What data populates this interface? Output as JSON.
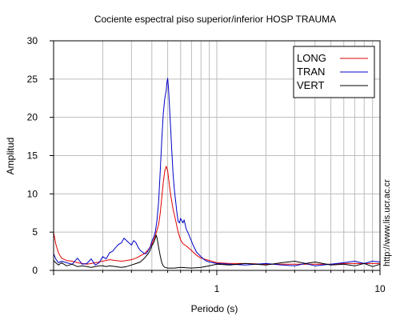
{
  "chart_data": {
    "type": "line",
    "title": "Cociente espectral piso superior/inferior  HOSP TRAUMA",
    "xlabel": "Periodo (s)",
    "ylabel": "Amplitud",
    "xscale": "log",
    "xlim": [
      0.1,
      10
    ],
    "ylim": [
      0,
      30
    ],
    "grid": true,
    "legend_position": "top-right",
    "x_tick_labels": [
      {
        "value": 1,
        "label": "1"
      },
      {
        "value": 10,
        "label": "10"
      }
    ],
    "y_tick_labels": [
      {
        "value": 0,
        "label": "0"
      },
      {
        "value": 5,
        "label": "5"
      },
      {
        "value": 10,
        "label": "10"
      },
      {
        "value": 15,
        "label": "15"
      },
      {
        "value": 20,
        "label": "20"
      },
      {
        "value": 25,
        "label": "25"
      },
      {
        "value": 30,
        "label": "30"
      }
    ],
    "series": [
      {
        "name": "LONG",
        "color": "#e00000",
        "points": [
          [
            0.1,
            5.0
          ],
          [
            0.103,
            3.5
          ],
          [
            0.107,
            2.3
          ],
          [
            0.112,
            1.6
          ],
          [
            0.12,
            1.3
          ],
          [
            0.13,
            1.2
          ],
          [
            0.14,
            1.0
          ],
          [
            0.15,
            0.9
          ],
          [
            0.16,
            0.8
          ],
          [
            0.17,
            0.9
          ],
          [
            0.18,
            1.0
          ],
          [
            0.19,
            1.1
          ],
          [
            0.2,
            1.2
          ],
          [
            0.21,
            1.3
          ],
          [
            0.22,
            1.4
          ],
          [
            0.24,
            1.3
          ],
          [
            0.26,
            1.2
          ],
          [
            0.28,
            1.3
          ],
          [
            0.3,
            1.4
          ],
          [
            0.32,
            1.6
          ],
          [
            0.34,
            1.9
          ],
          [
            0.36,
            2.2
          ],
          [
            0.38,
            2.7
          ],
          [
            0.4,
            3.4
          ],
          [
            0.42,
            4.5
          ],
          [
            0.44,
            6.0
          ],
          [
            0.45,
            7.5
          ],
          [
            0.46,
            9.5
          ],
          [
            0.47,
            11.5
          ],
          [
            0.48,
            13.0
          ],
          [
            0.49,
            13.6
          ],
          [
            0.5,
            13.0
          ],
          [
            0.51,
            11.5
          ],
          [
            0.52,
            10.0
          ],
          [
            0.54,
            8.0
          ],
          [
            0.56,
            6.5
          ],
          [
            0.58,
            5.0
          ],
          [
            0.6,
            4.0
          ],
          [
            0.62,
            3.5
          ],
          [
            0.65,
            3.2
          ],
          [
            0.7,
            2.6
          ],
          [
            0.75,
            2.0
          ],
          [
            0.8,
            1.6
          ],
          [
            0.9,
            1.3
          ],
          [
            1.0,
            1.0
          ],
          [
            1.2,
            0.9
          ],
          [
            1.5,
            0.9
          ],
          [
            2.0,
            0.8
          ],
          [
            2.5,
            0.8
          ],
          [
            3.0,
            0.8
          ],
          [
            4.0,
            0.8
          ],
          [
            5.0,
            0.8
          ],
          [
            6.0,
            0.9
          ],
          [
            7.0,
            0.9
          ],
          [
            8.0,
            0.9
          ],
          [
            9.0,
            0.9
          ],
          [
            10.0,
            0.9
          ]
        ]
      },
      {
        "name": "TRAN",
        "color": "#0000c8",
        "points": [
          [
            0.1,
            2.2
          ],
          [
            0.103,
            1.5
          ],
          [
            0.107,
            1.0
          ],
          [
            0.112,
            1.2
          ],
          [
            0.12,
            1.0
          ],
          [
            0.13,
            0.8
          ],
          [
            0.14,
            1.6
          ],
          [
            0.15,
            0.8
          ],
          [
            0.16,
            0.9
          ],
          [
            0.17,
            1.5
          ],
          [
            0.18,
            0.7
          ],
          [
            0.19,
            1.0
          ],
          [
            0.2,
            1.8
          ],
          [
            0.21,
            1.5
          ],
          [
            0.22,
            2.3
          ],
          [
            0.23,
            2.5
          ],
          [
            0.24,
            3.0
          ],
          [
            0.25,
            3.4
          ],
          [
            0.26,
            3.6
          ],
          [
            0.27,
            4.2
          ],
          [
            0.28,
            3.9
          ],
          [
            0.29,
            3.6
          ],
          [
            0.3,
            3.3
          ],
          [
            0.31,
            3.9
          ],
          [
            0.32,
            3.6
          ],
          [
            0.33,
            3.0
          ],
          [
            0.34,
            2.6
          ],
          [
            0.35,
            2.4
          ],
          [
            0.36,
            2.2
          ],
          [
            0.37,
            2.2
          ],
          [
            0.38,
            2.6
          ],
          [
            0.39,
            3.0
          ],
          [
            0.4,
            3.8
          ],
          [
            0.41,
            4.3
          ],
          [
            0.42,
            5.0
          ],
          [
            0.43,
            6.5
          ],
          [
            0.44,
            9.0
          ],
          [
            0.45,
            13.0
          ],
          [
            0.46,
            17.0
          ],
          [
            0.47,
            20.5
          ],
          [
            0.48,
            22.5
          ],
          [
            0.49,
            23.5
          ],
          [
            0.495,
            24.6
          ],
          [
            0.5,
            25.1
          ],
          [
            0.505,
            24.0
          ],
          [
            0.51,
            22.5
          ],
          [
            0.52,
            19.0
          ],
          [
            0.53,
            15.5
          ],
          [
            0.54,
            12.5
          ],
          [
            0.55,
            10.5
          ],
          [
            0.56,
            9.0
          ],
          [
            0.57,
            7.5
          ],
          [
            0.58,
            6.4
          ],
          [
            0.59,
            6.2
          ],
          [
            0.6,
            6.8
          ],
          [
            0.62,
            6.2
          ],
          [
            0.63,
            6.6
          ],
          [
            0.65,
            5.4
          ],
          [
            0.67,
            4.8
          ],
          [
            0.7,
            3.8
          ],
          [
            0.72,
            3.2
          ],
          [
            0.75,
            2.4
          ],
          [
            0.8,
            1.8
          ],
          [
            0.85,
            1.3
          ],
          [
            0.9,
            1.1
          ],
          [
            1.0,
            0.9
          ],
          [
            1.2,
            0.8
          ],
          [
            1.5,
            0.7
          ],
          [
            2.0,
            0.9
          ],
          [
            2.5,
            0.7
          ],
          [
            3.0,
            0.6
          ],
          [
            3.5,
            0.9
          ],
          [
            4.0,
            0.6
          ],
          [
            5.0,
            0.8
          ],
          [
            6.0,
            1.0
          ],
          [
            7.0,
            1.2
          ],
          [
            8.0,
            0.9
          ],
          [
            9.0,
            1.2
          ],
          [
            10.0,
            1.1
          ]
        ]
      },
      {
        "name": "VERT",
        "color": "#000000",
        "points": [
          [
            0.1,
            1.3
          ],
          [
            0.103,
            1.0
          ],
          [
            0.107,
            0.7
          ],
          [
            0.112,
            1.0
          ],
          [
            0.12,
            0.6
          ],
          [
            0.13,
            0.8
          ],
          [
            0.14,
            0.5
          ],
          [
            0.15,
            0.6
          ],
          [
            0.16,
            0.5
          ],
          [
            0.17,
            0.4
          ],
          [
            0.18,
            0.5
          ],
          [
            0.19,
            0.6
          ],
          [
            0.2,
            0.6
          ],
          [
            0.21,
            0.5
          ],
          [
            0.22,
            0.6
          ],
          [
            0.24,
            0.5
          ],
          [
            0.26,
            0.4
          ],
          [
            0.28,
            0.5
          ],
          [
            0.3,
            0.7
          ],
          [
            0.32,
            0.9
          ],
          [
            0.34,
            1.1
          ],
          [
            0.36,
            1.6
          ],
          [
            0.38,
            2.2
          ],
          [
            0.39,
            2.6
          ],
          [
            0.4,
            3.2
          ],
          [
            0.41,
            3.6
          ],
          [
            0.42,
            4.2
          ],
          [
            0.425,
            4.6
          ],
          [
            0.43,
            4.3
          ],
          [
            0.44,
            3.0
          ],
          [
            0.45,
            1.9
          ],
          [
            0.46,
            1.0
          ],
          [
            0.47,
            0.6
          ],
          [
            0.48,
            0.4
          ],
          [
            0.5,
            0.3
          ],
          [
            0.55,
            0.3
          ],
          [
            0.6,
            0.4
          ],
          [
            0.7,
            0.3
          ],
          [
            0.8,
            0.4
          ],
          [
            0.9,
            0.6
          ],
          [
            1.0,
            0.8
          ],
          [
            1.2,
            0.7
          ],
          [
            1.5,
            0.9
          ],
          [
            2.0,
            0.7
          ],
          [
            2.5,
            1.0
          ],
          [
            3.0,
            1.2
          ],
          [
            3.5,
            0.9
          ],
          [
            4.0,
            1.1
          ],
          [
            5.0,
            0.7
          ],
          [
            6.0,
            0.8
          ],
          [
            7.0,
            0.6
          ],
          [
            8.0,
            0.9
          ],
          [
            9.0,
            0.5
          ],
          [
            10.0,
            0.8
          ]
        ]
      }
    ]
  },
  "watermark": "http://www.lis.ucr.ac.cr"
}
